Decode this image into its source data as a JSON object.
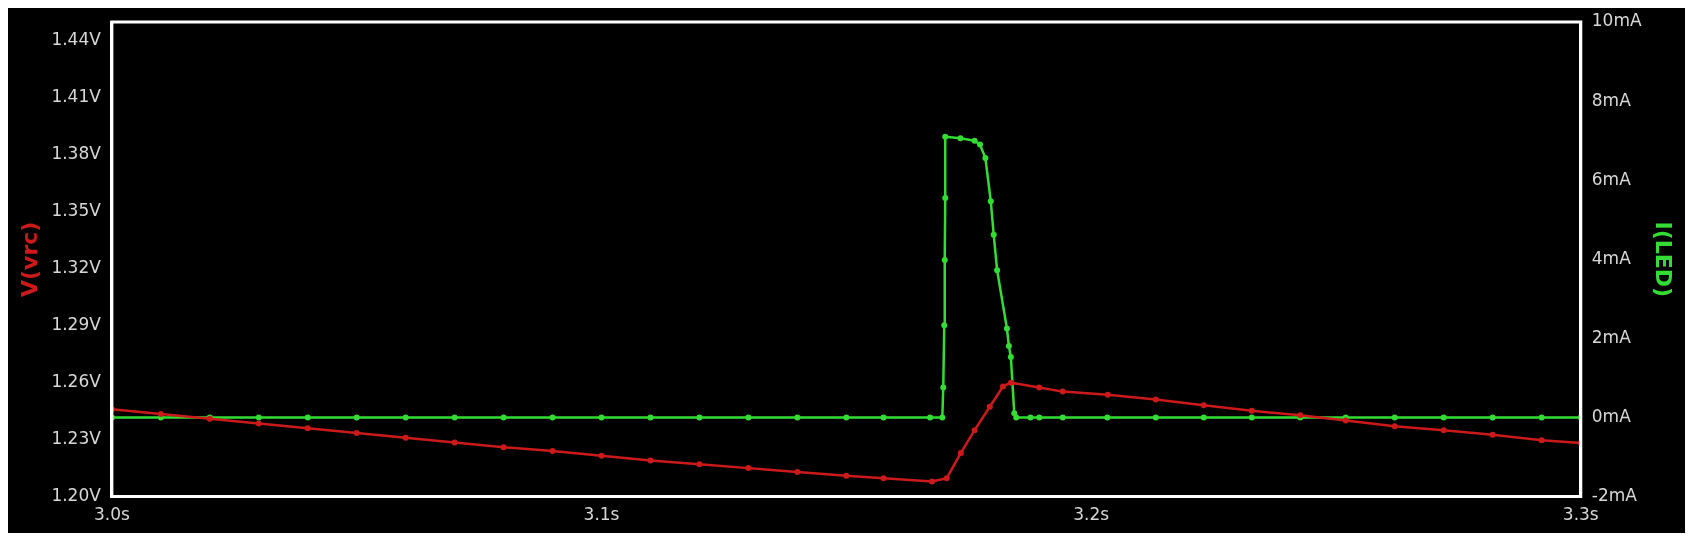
{
  "chart_data": {
    "type": "line",
    "ylabel": "V(vrc)",
    "y2label": "I(LED)",
    "xlim": [
      3.0,
      3.3
    ],
    "xticks": [
      {
        "value": 3.0,
        "label": "3.0s"
      },
      {
        "value": 3.1,
        "label": "3.1s"
      },
      {
        "value": 3.2,
        "label": "3.2s"
      },
      {
        "value": 3.3,
        "label": "3.3s"
      }
    ],
    "ylim": [
      1.2,
      1.45
    ],
    "yticks": [
      {
        "value": 1.2,
        "label": "1.20V"
      },
      {
        "value": 1.23,
        "label": "1.23V"
      },
      {
        "value": 1.26,
        "label": "1.26V"
      },
      {
        "value": 1.29,
        "label": "1.29V"
      },
      {
        "value": 1.32,
        "label": "1.32V"
      },
      {
        "value": 1.35,
        "label": "1.35V"
      },
      {
        "value": 1.38,
        "label": "1.38V"
      },
      {
        "value": 1.41,
        "label": "1.41V"
      },
      {
        "value": 1.44,
        "label": "1.44V"
      }
    ],
    "y2lim": [
      -2,
      10
    ],
    "y2ticks": [
      {
        "value": -2,
        "label": "-2mA"
      },
      {
        "value": 0,
        "label": "0mA"
      },
      {
        "value": 2,
        "label": "2mA"
      },
      {
        "value": 4,
        "label": "4mA"
      },
      {
        "value": 6,
        "label": "6mA"
      },
      {
        "value": 8,
        "label": "8mA"
      },
      {
        "value": 10,
        "label": "10mA"
      }
    ],
    "grid": false,
    "legend": false,
    "marker": "circle",
    "line_style": "solid",
    "series": [
      {
        "color": "#cc1a1a",
        "x": [
          3.0,
          3.01,
          3.02,
          3.03,
          3.04,
          3.05,
          3.06,
          3.07,
          3.08,
          3.09,
          3.1,
          3.11,
          3.12,
          3.13,
          3.14,
          3.15,
          3.1576,
          3.1675,
          3.1705,
          3.1734,
          3.1762,
          3.1793,
          3.182,
          3.1836,
          3.1894,
          3.1942,
          3.2034,
          3.2132,
          3.223,
          3.2328,
          3.2427,
          3.252,
          3.262,
          3.272,
          3.282,
          3.292,
          3.3
        ],
        "values": [
          1.246,
          1.2435,
          1.241,
          1.2385,
          1.236,
          1.2335,
          1.231,
          1.2285,
          1.226,
          1.224,
          1.2215,
          1.219,
          1.217,
          1.215,
          1.213,
          1.211,
          1.2097,
          1.208,
          1.2097,
          1.223,
          1.235,
          1.2473,
          1.258,
          1.26,
          1.2575,
          1.2553,
          1.2537,
          1.2512,
          1.2481,
          1.2452,
          1.2428,
          1.2401,
          1.2371,
          1.2349,
          1.2326,
          1.2297,
          1.2282
        ]
      },
      {
        "color": "#33dd33",
        "axis": "y2",
        "x": [
          3.0,
          3.01,
          3.02,
          3.03,
          3.04,
          3.05,
          3.06,
          3.07,
          3.08,
          3.09,
          3.1,
          3.11,
          3.12,
          3.13,
          3.14,
          3.15,
          3.1576,
          3.1671,
          3.1696,
          3.1698,
          3.17,
          3.1701,
          3.1702,
          3.1702,
          3.1733,
          3.1762,
          3.1773,
          3.1784,
          3.1795,
          3.1801,
          3.1808,
          3.1828,
          3.1832,
          3.1836,
          3.1843,
          3.1847,
          3.1876,
          3.1894,
          3.1942,
          3.2033,
          3.2132,
          3.223,
          3.2328,
          3.2427,
          3.252,
          3.262,
          3.272,
          3.282,
          3.292,
          3.3
        ],
        "values": [
          0,
          0,
          0,
          0,
          0,
          0,
          0,
          0,
          0,
          0,
          0,
          0,
          0,
          0,
          0,
          0,
          0,
          0,
          0,
          0.76,
          2.33,
          3.98,
          5.55,
          7.1,
          7.06,
          7.0,
          6.9,
          6.56,
          5.47,
          4.62,
          3.72,
          2.25,
          1.81,
          1.53,
          0.11,
          0,
          0,
          0,
          0,
          0,
          0,
          0,
          0,
          0,
          0,
          0,
          0,
          0,
          0,
          0
        ]
      }
    ]
  }
}
